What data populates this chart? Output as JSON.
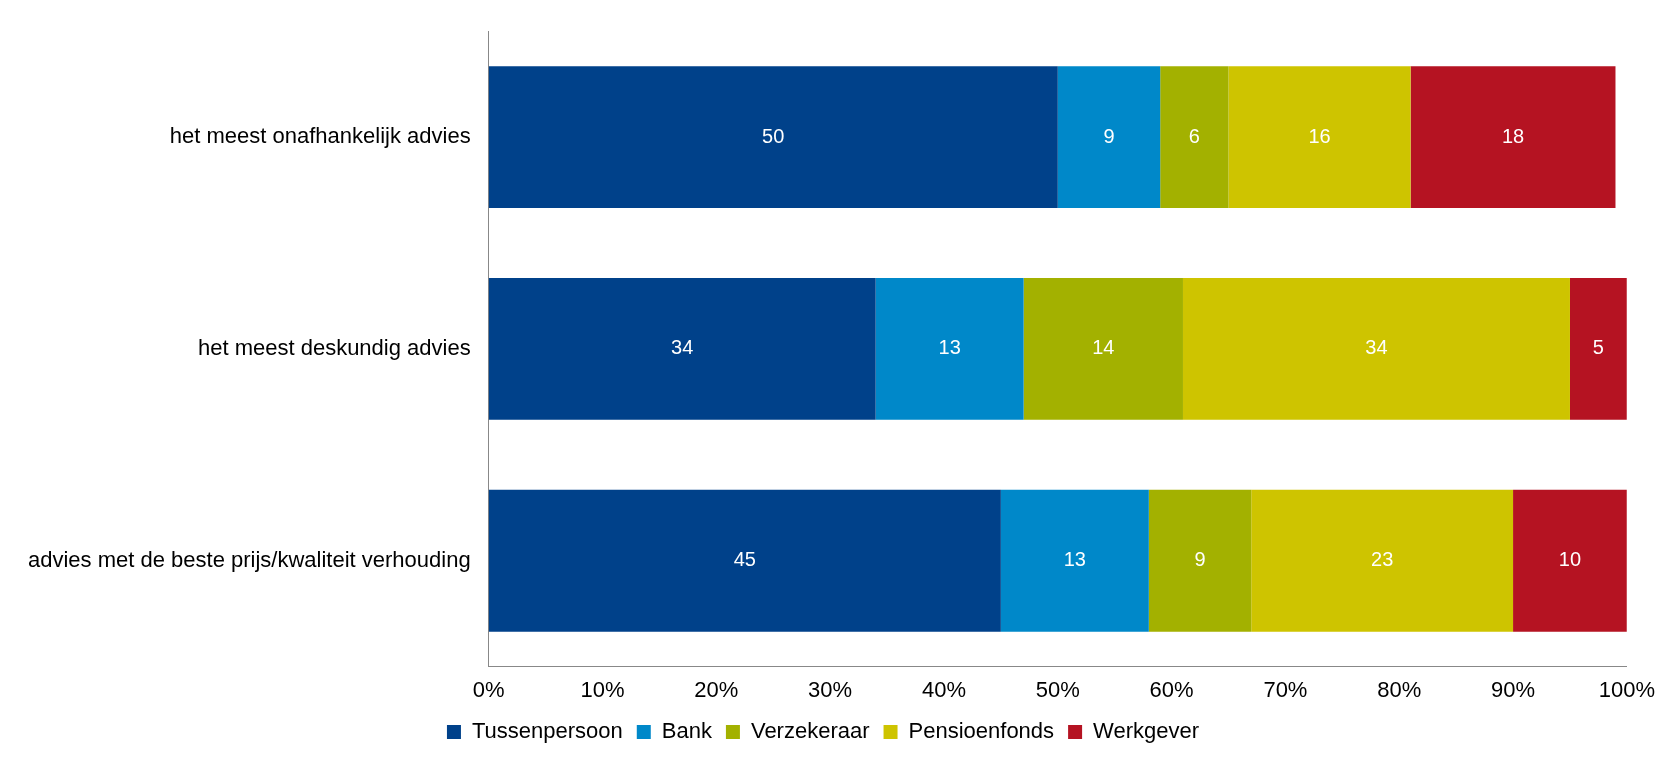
{
  "chart_data": {
    "type": "bar",
    "orientation": "horizontal",
    "stacked": true,
    "categories": [
      "het meest onafhankelijk advies",
      "het meest deskundig advies",
      "advies met de beste prijs/kwaliteit verhouding"
    ],
    "series": [
      {
        "name": "Tussenpersoon",
        "color": "#00418a",
        "values": [
          50,
          34,
          45
        ]
      },
      {
        "name": "Bank",
        "color": "#0088c9",
        "values": [
          9,
          13,
          13
        ]
      },
      {
        "name": "Verzekeraar",
        "color": "#a3b100",
        "values": [
          6,
          14,
          9
        ]
      },
      {
        "name": "Pensioenfonds",
        "color": "#cec400",
        "values": [
          16,
          34,
          23
        ]
      },
      {
        "name": "Werkgever",
        "color": "#b51322",
        "values": [
          18,
          5,
          10
        ]
      }
    ],
    "xlim": [
      0,
      100
    ],
    "xticks": [
      {
        "value": 0,
        "label": "0%"
      },
      {
        "value": 10,
        "label": "10%"
      },
      {
        "value": 20,
        "label": "20%"
      },
      {
        "value": 30,
        "label": "30%"
      },
      {
        "value": 40,
        "label": "40%"
      },
      {
        "value": 50,
        "label": "50%"
      },
      {
        "value": 60,
        "label": "60%"
      },
      {
        "value": 70,
        "label": "70%"
      },
      {
        "value": 80,
        "label": "80%"
      },
      {
        "value": 90,
        "label": "90%"
      },
      {
        "value": 100,
        "label": "100%"
      }
    ],
    "data_labels": true,
    "legend": "bottom",
    "grid": false
  }
}
